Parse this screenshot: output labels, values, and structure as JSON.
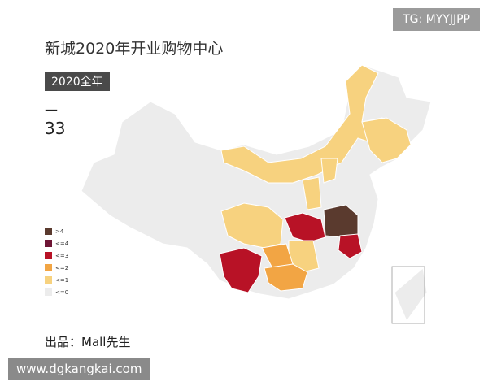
{
  "header": {
    "watermark": "TG: MYYJJPP",
    "title": "新城2020年开业购物中心",
    "badge": "2020全年",
    "dash": "—",
    "total": "33"
  },
  "legend": {
    "items": [
      {
        "label": ">4",
        "color": "#5a3a2e"
      },
      {
        "label": "<=4",
        "color": "#6e1535"
      },
      {
        "label": "<=3",
        "color": "#b81226"
      },
      {
        "label": "<=2",
        "color": "#f2a544"
      },
      {
        "label": "<=1",
        "color": "#f7d27f"
      },
      {
        "label": "<=0",
        "color": "#ececec"
      }
    ]
  },
  "footer": {
    "credit": "出品：Mall先生",
    "site": "www.dgkangkai.com"
  }
}
